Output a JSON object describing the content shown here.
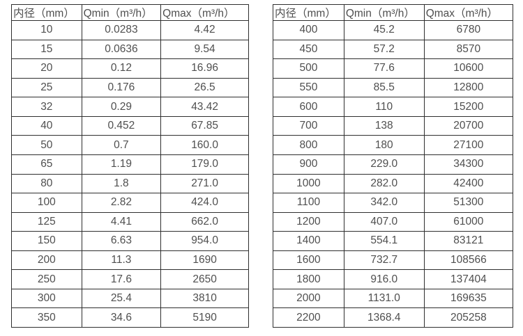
{
  "colors": {
    "background": "#ffffff",
    "border": "#2e2e2e",
    "text": "#4f4f4f"
  },
  "tables": [
    {
      "name": "flow-spec-small-diameters",
      "headers": [
        "内径（mm）",
        "Qmin（m³/h）",
        "Qmax（m³/h）"
      ],
      "rows": [
        [
          "10",
          "0.0283",
          "4.42"
        ],
        [
          "15",
          "0.0636",
          "9.54"
        ],
        [
          "20",
          "0.12",
          "16.96"
        ],
        [
          "25",
          "0.176",
          "26.5"
        ],
        [
          "32",
          "0.29",
          "43.42"
        ],
        [
          "40",
          "0.452",
          "67.85"
        ],
        [
          "50",
          "0.7",
          "160.0"
        ],
        [
          "65",
          "1.19",
          "179.0"
        ],
        [
          "80",
          "1.8",
          "271.0"
        ],
        [
          "100",
          "2.82",
          "424.0"
        ],
        [
          "125",
          "4.41",
          "662.0"
        ],
        [
          "150",
          "6.63",
          "954.0"
        ],
        [
          "200",
          "11.3",
          "1690"
        ],
        [
          "250",
          "17.6",
          "2650"
        ],
        [
          "300",
          "25.4",
          "3810"
        ],
        [
          "350",
          "34.6",
          "5190"
        ]
      ]
    },
    {
      "name": "flow-spec-large-diameters",
      "headers": [
        "内径（mm）",
        "Qmin（m³/h）",
        "Qmax（m³/h）"
      ],
      "rows": [
        [
          "400",
          "45.2",
          "6780"
        ],
        [
          "450",
          "57.2",
          "8570"
        ],
        [
          "500",
          "77.6",
          "10600"
        ],
        [
          "550",
          "85.5",
          "12800"
        ],
        [
          "600",
          "110",
          "15200"
        ],
        [
          "700",
          "138",
          "20700"
        ],
        [
          "800",
          "180",
          "27100"
        ],
        [
          "900",
          "229.0",
          "34300"
        ],
        [
          "1000",
          "282.0",
          "42400"
        ],
        [
          "1100",
          "342.0",
          "51300"
        ],
        [
          "1200",
          "407.0",
          "61000"
        ],
        [
          "1400",
          "554.1",
          "83121"
        ],
        [
          "1600",
          "732.7",
          "108566"
        ],
        [
          "1800",
          "916.0",
          "137404"
        ],
        [
          "2000",
          "1131.0",
          "169635"
        ],
        [
          "2200",
          "1368.4",
          "205258"
        ]
      ]
    }
  ]
}
